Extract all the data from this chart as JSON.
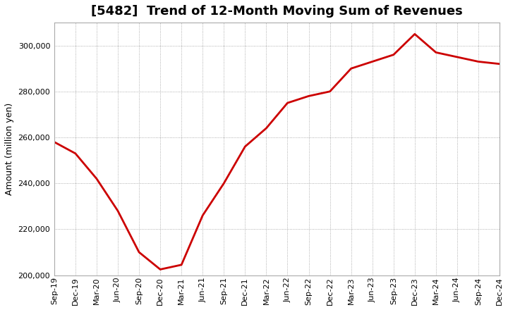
{
  "title": "[5482]  Trend of 12-Month Moving Sum of Revenues",
  "ylabel": "Amount (million yen)",
  "line_color": "#cc0000",
  "background_color": "#ffffff",
  "plot_bg_color": "#ffffff",
  "grid_color": "#999999",
  "ylim": [
    200000,
    310000
  ],
  "yticks": [
    200000,
    220000,
    240000,
    260000,
    280000,
    300000
  ],
  "x_labels": [
    "Sep-19",
    "Dec-19",
    "Mar-20",
    "Jun-20",
    "Sep-20",
    "Dec-20",
    "Mar-21",
    "Jun-21",
    "Sep-21",
    "Dec-21",
    "Mar-22",
    "Jun-22",
    "Sep-22",
    "Dec-22",
    "Mar-23",
    "Jun-23",
    "Sep-23",
    "Dec-23",
    "Mar-24",
    "Jun-24",
    "Sep-24",
    "Dec-24"
  ],
  "y_values": [
    258000,
    253000,
    242000,
    228000,
    210000,
    202500,
    204500,
    226000,
    240000,
    256000,
    264000,
    275000,
    278000,
    280000,
    290000,
    293000,
    296000,
    305000,
    297000,
    295000,
    293000,
    292000
  ],
  "figsize": [
    7.2,
    4.4
  ],
  "dpi": 100,
  "title_fontsize": 13,
  "ylabel_fontsize": 9,
  "tick_fontsize": 8,
  "linewidth": 2.0
}
